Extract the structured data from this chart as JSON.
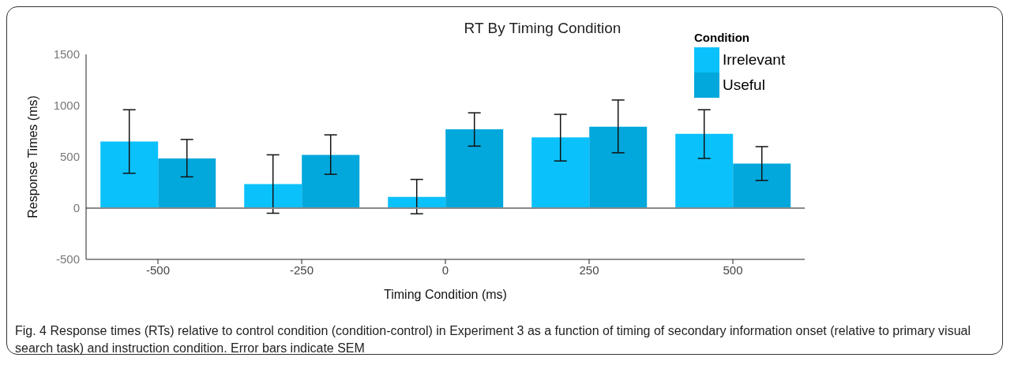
{
  "chart_data": {
    "type": "bar",
    "title": "RT By Timing Condition",
    "xlabel": "Timing Condition (ms)",
    "ylabel": "Response Times (ms)",
    "legend_title": "Condition",
    "categories": [
      "-500",
      "-250",
      "0",
      "250",
      "500"
    ],
    "series": [
      {
        "name": "Irrelevant",
        "color": "#0bc1fc",
        "values": [
          650,
          235,
          110,
          690,
          725
        ],
        "errors": [
          [
            340,
            960
          ],
          [
            -50,
            520
          ],
          [
            -55,
            280
          ],
          [
            460,
            915
          ],
          [
            485,
            960
          ]
        ]
      },
      {
        "name": "Useful",
        "color": "#02a8dc",
        "values": [
          485,
          520,
          770,
          795,
          435
        ],
        "errors": [
          [
            305,
            670
          ],
          [
            330,
            715
          ],
          [
            605,
            930
          ],
          [
            540,
            1055
          ],
          [
            270,
            600
          ]
        ]
      }
    ],
    "ylim": [
      -500,
      1500
    ],
    "yticks": [
      -500,
      0,
      500,
      1000,
      1500
    ],
    "grid": false,
    "legend": "top right",
    "ref_lines": [
      {
        "axis": "y",
        "value": 0,
        "color": "#888888"
      }
    ],
    "annotations": [
      "Fig. 4 Response times (RTs) relative to control condition (condition-control) in Experiment 3 as a function of timing of secondary information onset (relative to primary visual search task) and instruction condition. Error bars indicate SEM"
    ]
  }
}
